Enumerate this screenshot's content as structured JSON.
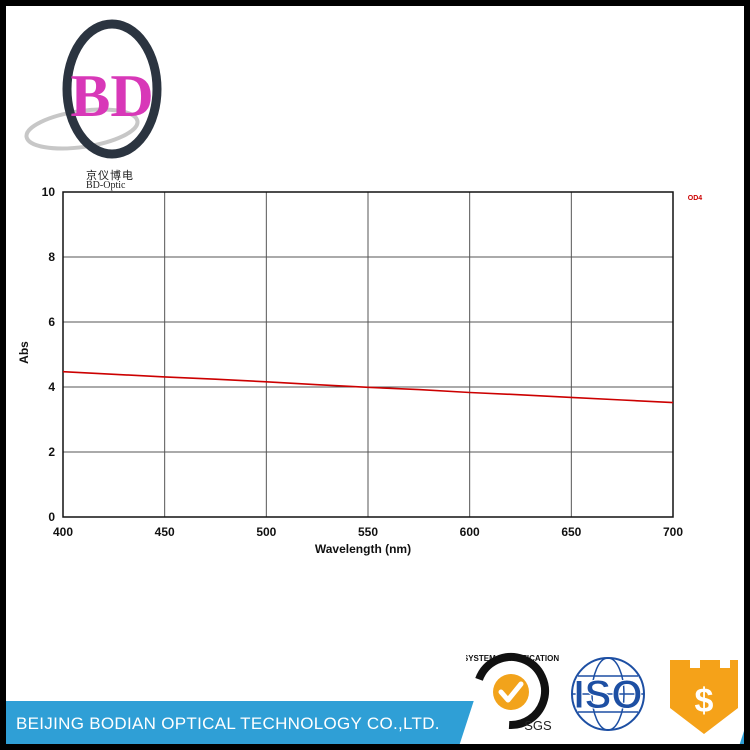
{
  "brand": {
    "logo_letters": "BD",
    "name_cn": "京仪博电",
    "name_en": "BD-Optic",
    "company": "BEIJING BODIAN OPTICAL TECHNOLOGY CO.,LTD.",
    "accent_color": "#2f9fd6"
  },
  "certifications": {
    "sgs_label": "SGS",
    "sgs_ring_text": "SYSTEM CERTIFICATION",
    "iso_label": "ISO",
    "shield_symbol": "$"
  },
  "chart_data": {
    "type": "line",
    "title": "",
    "xlabel": "Wavelength (nm)",
    "ylabel": "Abs",
    "xlim": [
      400,
      700
    ],
    "ylim": [
      0,
      10
    ],
    "xticks": [
      400,
      450,
      500,
      550,
      600,
      650,
      700
    ],
    "yticks": [
      0,
      2,
      4,
      6,
      8,
      10
    ],
    "grid": true,
    "legend_placement": "top-right",
    "series": [
      {
        "name": "OD4",
        "color": "#cc0000",
        "x": [
          400,
          425,
          450,
          475,
          500,
          525,
          550,
          575,
          600,
          625,
          650,
          675,
          700
        ],
        "y": [
          4.47,
          4.39,
          4.31,
          4.24,
          4.16,
          4.07,
          3.99,
          3.92,
          3.83,
          3.76,
          3.68,
          3.6,
          3.52
        ]
      }
    ]
  }
}
